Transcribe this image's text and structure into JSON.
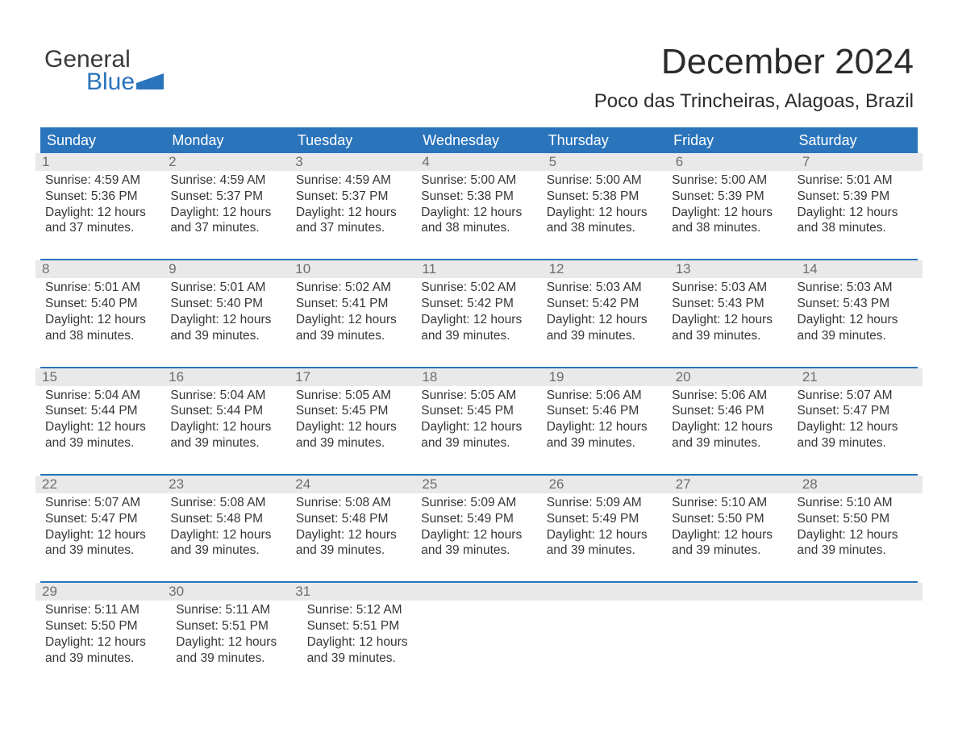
{
  "logo": {
    "line1": "General",
    "line2": "Blue",
    "flag_color": "#2a74bb"
  },
  "title": "December 2024",
  "location": "Poco das Trincheiras, Alagoas, Brazil",
  "colors": {
    "header_bg": "#2a74bb",
    "header_text": "#ffffff",
    "daynum_bg": "#e9e9e9",
    "daynum_text": "#6d6d6d",
    "body_text": "#363636",
    "week_border": "#2a74bb",
    "background": "#ffffff"
  },
  "typography": {
    "title_fontsize": 44,
    "location_fontsize": 24,
    "header_fontsize": 18,
    "daynum_fontsize": 17,
    "body_fontsize": 15.5,
    "logo_fontsize": 30
  },
  "day_headers": [
    "Sunday",
    "Monday",
    "Tuesday",
    "Wednesday",
    "Thursday",
    "Friday",
    "Saturday"
  ],
  "weeks": [
    [
      {
        "n": "1",
        "sr": "Sunrise: 4:59 AM",
        "ss": "Sunset: 5:36 PM",
        "d1": "Daylight: 12 hours",
        "d2": "and 37 minutes."
      },
      {
        "n": "2",
        "sr": "Sunrise: 4:59 AM",
        "ss": "Sunset: 5:37 PM",
        "d1": "Daylight: 12 hours",
        "d2": "and 37 minutes."
      },
      {
        "n": "3",
        "sr": "Sunrise: 4:59 AM",
        "ss": "Sunset: 5:37 PM",
        "d1": "Daylight: 12 hours",
        "d2": "and 37 minutes."
      },
      {
        "n": "4",
        "sr": "Sunrise: 5:00 AM",
        "ss": "Sunset: 5:38 PM",
        "d1": "Daylight: 12 hours",
        "d2": "and 38 minutes."
      },
      {
        "n": "5",
        "sr": "Sunrise: 5:00 AM",
        "ss": "Sunset: 5:38 PM",
        "d1": "Daylight: 12 hours",
        "d2": "and 38 minutes."
      },
      {
        "n": "6",
        "sr": "Sunrise: 5:00 AM",
        "ss": "Sunset: 5:39 PM",
        "d1": "Daylight: 12 hours",
        "d2": "and 38 minutes."
      },
      {
        "n": "7",
        "sr": "Sunrise: 5:01 AM",
        "ss": "Sunset: 5:39 PM",
        "d1": "Daylight: 12 hours",
        "d2": "and 38 minutes."
      }
    ],
    [
      {
        "n": "8",
        "sr": "Sunrise: 5:01 AM",
        "ss": "Sunset: 5:40 PM",
        "d1": "Daylight: 12 hours",
        "d2": "and 38 minutes."
      },
      {
        "n": "9",
        "sr": "Sunrise: 5:01 AM",
        "ss": "Sunset: 5:40 PM",
        "d1": "Daylight: 12 hours",
        "d2": "and 39 minutes."
      },
      {
        "n": "10",
        "sr": "Sunrise: 5:02 AM",
        "ss": "Sunset: 5:41 PM",
        "d1": "Daylight: 12 hours",
        "d2": "and 39 minutes."
      },
      {
        "n": "11",
        "sr": "Sunrise: 5:02 AM",
        "ss": "Sunset: 5:42 PM",
        "d1": "Daylight: 12 hours",
        "d2": "and 39 minutes."
      },
      {
        "n": "12",
        "sr": "Sunrise: 5:03 AM",
        "ss": "Sunset: 5:42 PM",
        "d1": "Daylight: 12 hours",
        "d2": "and 39 minutes."
      },
      {
        "n": "13",
        "sr": "Sunrise: 5:03 AM",
        "ss": "Sunset: 5:43 PM",
        "d1": "Daylight: 12 hours",
        "d2": "and 39 minutes."
      },
      {
        "n": "14",
        "sr": "Sunrise: 5:03 AM",
        "ss": "Sunset: 5:43 PM",
        "d1": "Daylight: 12 hours",
        "d2": "and 39 minutes."
      }
    ],
    [
      {
        "n": "15",
        "sr": "Sunrise: 5:04 AM",
        "ss": "Sunset: 5:44 PM",
        "d1": "Daylight: 12 hours",
        "d2": "and 39 minutes."
      },
      {
        "n": "16",
        "sr": "Sunrise: 5:04 AM",
        "ss": "Sunset: 5:44 PM",
        "d1": "Daylight: 12 hours",
        "d2": "and 39 minutes."
      },
      {
        "n": "17",
        "sr": "Sunrise: 5:05 AM",
        "ss": "Sunset: 5:45 PM",
        "d1": "Daylight: 12 hours",
        "d2": "and 39 minutes."
      },
      {
        "n": "18",
        "sr": "Sunrise: 5:05 AM",
        "ss": "Sunset: 5:45 PM",
        "d1": "Daylight: 12 hours",
        "d2": "and 39 minutes."
      },
      {
        "n": "19",
        "sr": "Sunrise: 5:06 AM",
        "ss": "Sunset: 5:46 PM",
        "d1": "Daylight: 12 hours",
        "d2": "and 39 minutes."
      },
      {
        "n": "20",
        "sr": "Sunrise: 5:06 AM",
        "ss": "Sunset: 5:46 PM",
        "d1": "Daylight: 12 hours",
        "d2": "and 39 minutes."
      },
      {
        "n": "21",
        "sr": "Sunrise: 5:07 AM",
        "ss": "Sunset: 5:47 PM",
        "d1": "Daylight: 12 hours",
        "d2": "and 39 minutes."
      }
    ],
    [
      {
        "n": "22",
        "sr": "Sunrise: 5:07 AM",
        "ss": "Sunset: 5:47 PM",
        "d1": "Daylight: 12 hours",
        "d2": "and 39 minutes."
      },
      {
        "n": "23",
        "sr": "Sunrise: 5:08 AM",
        "ss": "Sunset: 5:48 PM",
        "d1": "Daylight: 12 hours",
        "d2": "and 39 minutes."
      },
      {
        "n": "24",
        "sr": "Sunrise: 5:08 AM",
        "ss": "Sunset: 5:48 PM",
        "d1": "Daylight: 12 hours",
        "d2": "and 39 minutes."
      },
      {
        "n": "25",
        "sr": "Sunrise: 5:09 AM",
        "ss": "Sunset: 5:49 PM",
        "d1": "Daylight: 12 hours",
        "d2": "and 39 minutes."
      },
      {
        "n": "26",
        "sr": "Sunrise: 5:09 AM",
        "ss": "Sunset: 5:49 PM",
        "d1": "Daylight: 12 hours",
        "d2": "and 39 minutes."
      },
      {
        "n": "27",
        "sr": "Sunrise: 5:10 AM",
        "ss": "Sunset: 5:50 PM",
        "d1": "Daylight: 12 hours",
        "d2": "and 39 minutes."
      },
      {
        "n": "28",
        "sr": "Sunrise: 5:10 AM",
        "ss": "Sunset: 5:50 PM",
        "d1": "Daylight: 12 hours",
        "d2": "and 39 minutes."
      }
    ],
    [
      {
        "n": "29",
        "sr": "Sunrise: 5:11 AM",
        "ss": "Sunset: 5:50 PM",
        "d1": "Daylight: 12 hours",
        "d2": "and 39 minutes."
      },
      {
        "n": "30",
        "sr": "Sunrise: 5:11 AM",
        "ss": "Sunset: 5:51 PM",
        "d1": "Daylight: 12 hours",
        "d2": "and 39 minutes."
      },
      {
        "n": "31",
        "sr": "Sunrise: 5:12 AM",
        "ss": "Sunset: 5:51 PM",
        "d1": "Daylight: 12 hours",
        "d2": "and 39 minutes."
      },
      null,
      null,
      null,
      null
    ]
  ]
}
